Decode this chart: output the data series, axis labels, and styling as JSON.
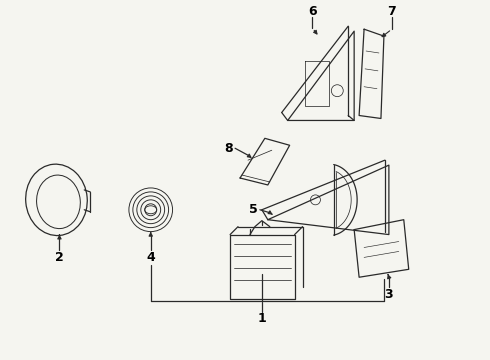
{
  "bg_color": "#f5f5f0",
  "line_color": "#2a2a2a",
  "label_color": "#000000",
  "lw": 0.9
}
